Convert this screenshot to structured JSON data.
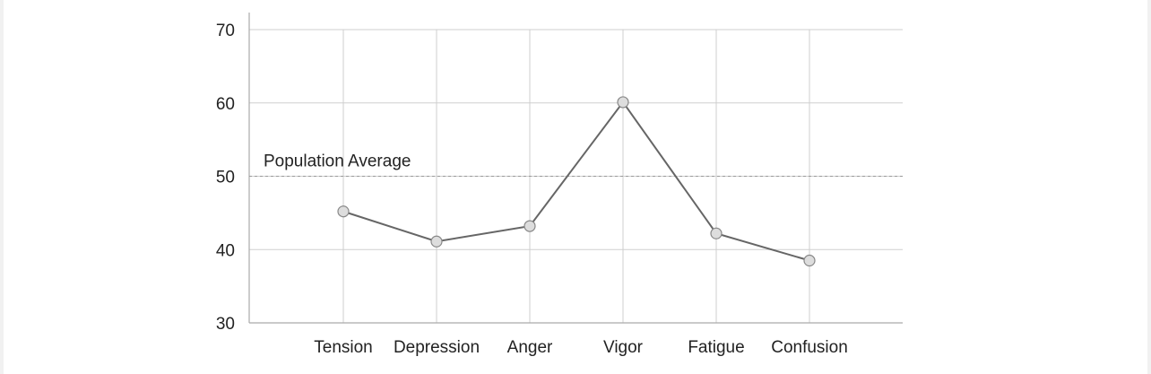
{
  "chart_data": {
    "type": "line",
    "title": "",
    "xlabel": "",
    "ylabel": "",
    "ylim": [
      30,
      70
    ],
    "yticks": [
      30,
      40,
      50,
      60,
      70
    ],
    "categories": [
      "Tension",
      "Depression",
      "Anger",
      "Vigor",
      "Fatigue",
      "Confusion"
    ],
    "series": [
      {
        "values": [
          45.2,
          41.1,
          43.2,
          60.1,
          42.2,
          38.5
        ],
        "color": "#666666"
      }
    ],
    "reference_line": {
      "value": 50,
      "label": "Population Average",
      "style": "dashed"
    },
    "grid": true,
    "colors": {
      "line": "#666666",
      "marker_fill": "#dddddd",
      "marker_stroke": "#888888",
      "grid": "#cfcfcf",
      "axis": "#aaaaaa"
    }
  }
}
